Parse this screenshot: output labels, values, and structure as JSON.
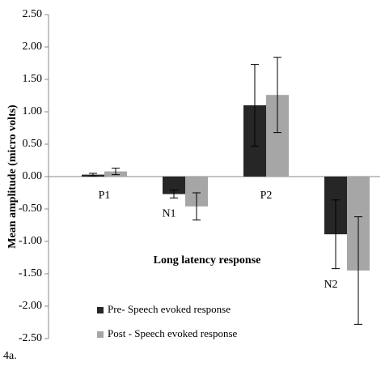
{
  "chart_data": {
    "type": "bar",
    "ylabel": "Mean amplitude (micro volts)",
    "annotation": "Long latency response",
    "caption": "4a.",
    "categories": [
      "P1",
      "N1",
      "P2",
      "N2"
    ],
    "series": [
      {
        "name": "Pre- Speech evoked response",
        "color": "#262626",
        "values": [
          0.03,
          -0.27,
          1.1,
          -0.89
        ],
        "errors": [
          0.02,
          0.06,
          0.63,
          0.53
        ]
      },
      {
        "name": "Post - Speech evoked response",
        "color": "#a6a6a6",
        "values": [
          0.08,
          -0.46,
          1.26,
          -1.45
        ],
        "errors": [
          0.05,
          0.21,
          0.58,
          0.83
        ]
      }
    ],
    "ylim": [
      -2.5,
      2.5
    ],
    "yticks": [
      {
        "value": -2.5,
        "label": "-2.50"
      },
      {
        "value": -2,
        "label": "-2.00"
      },
      {
        "value": -1.5,
        "label": "-1.50"
      },
      {
        "value": -1,
        "label": "-1.00"
      },
      {
        "value": -0.5,
        "label": "-0.50"
      },
      {
        "value": 0,
        "label": "0.00"
      },
      {
        "value": 0.5,
        "label": "0.50"
      },
      {
        "value": 1,
        "label": "1.00"
      },
      {
        "value": 1.5,
        "label": "1.50"
      },
      {
        "value": 2,
        "label": "2.00"
      },
      {
        "value": 2.5,
        "label": "2.50"
      }
    ],
    "legend": "bottom-left"
  }
}
